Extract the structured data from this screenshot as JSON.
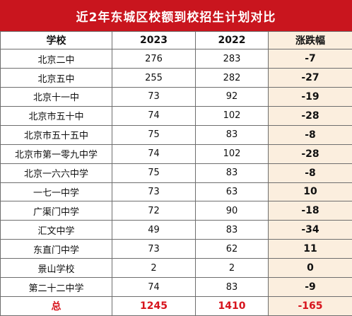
{
  "banner": {
    "title": "近2年东城区校额到校招生计划对比"
  },
  "table": {
    "headers": {
      "school": "学校",
      "y2023": "2023",
      "y2022": "2022",
      "change": "涨跌幅"
    },
    "rows": [
      {
        "school": "北京二中",
        "y2023": "276",
        "y2022": "283",
        "change": "-7"
      },
      {
        "school": "北京五中",
        "y2023": "255",
        "y2022": "282",
        "change": "-27"
      },
      {
        "school": "北京十一中",
        "y2023": "73",
        "y2022": "92",
        "change": "-19"
      },
      {
        "school": "北京市五十中",
        "y2023": "74",
        "y2022": "102",
        "change": "-28"
      },
      {
        "school": "北京市五十五中",
        "y2023": "75",
        "y2022": "83",
        "change": "-8"
      },
      {
        "school": "北京市第一零九中学",
        "y2023": "74",
        "y2022": "102",
        "change": "-28"
      },
      {
        "school": "北京一六六中学",
        "y2023": "75",
        "y2022": "83",
        "change": "-8"
      },
      {
        "school": "一七一中学",
        "y2023": "73",
        "y2022": "63",
        "change": "10"
      },
      {
        "school": "广渠门中学",
        "y2023": "72",
        "y2022": "90",
        "change": "-18"
      },
      {
        "school": "汇文中学",
        "y2023": "49",
        "y2022": "83",
        "change": "-34"
      },
      {
        "school": "东直门中学",
        "y2023": "73",
        "y2022": "62",
        "change": "11"
      },
      {
        "school": "景山学校",
        "y2023": "2",
        "y2022": "2",
        "change": "0"
      },
      {
        "school": "第二十二中学",
        "y2023": "74",
        "y2022": "83",
        "change": "-9"
      }
    ],
    "total": {
      "label": "总",
      "y2023": "1245",
      "y2022": "1410",
      "change": "-165"
    }
  },
  "colors": {
    "banner_bg": "#c9151e",
    "change_column_bg": "#fbeede",
    "total_text": "#d7141d"
  }
}
